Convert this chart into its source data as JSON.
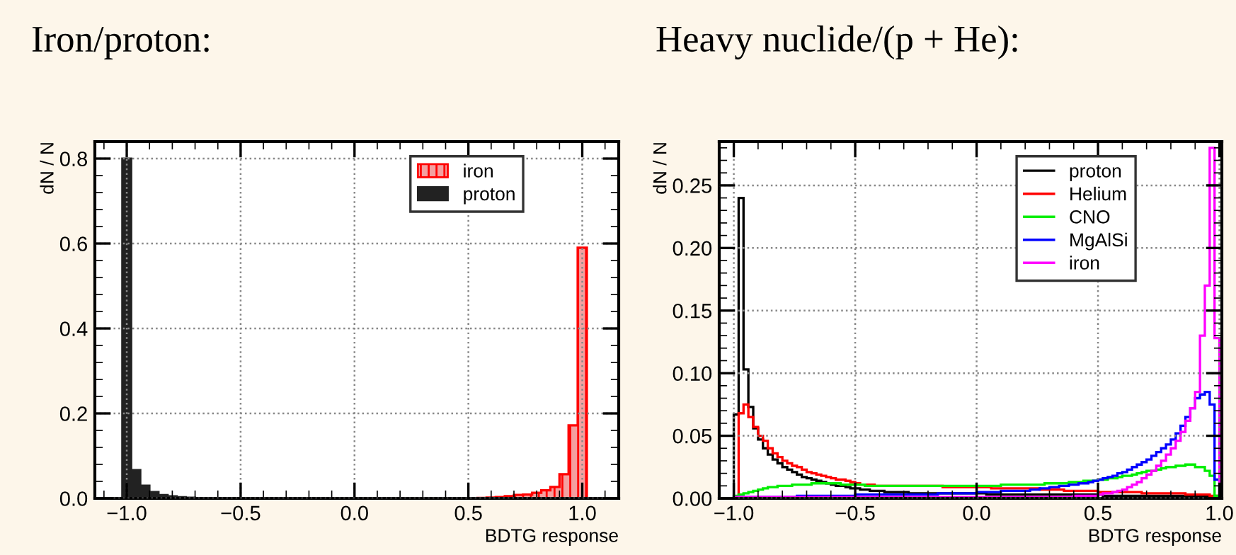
{
  "chart_data": [
    {
      "type": "histogram",
      "title": "Iron/proton:",
      "xlabel": "BDTG response",
      "ylabel": "dN / N",
      "bins": [
        -1.02,
        -0.98,
        -0.94,
        -0.9,
        -0.86,
        -0.82,
        -0.78,
        -0.74,
        -0.7,
        -0.66,
        -0.62,
        -0.58,
        -0.54,
        -0.5,
        -0.46,
        -0.42,
        -0.38,
        -0.34,
        -0.3,
        -0.26,
        -0.22,
        -0.18,
        -0.14,
        -0.1,
        -0.06,
        -0.02,
        0.02,
        0.06,
        0.1,
        0.14,
        0.18,
        0.22,
        0.26,
        0.3,
        0.34,
        0.38,
        0.42,
        0.46,
        0.5,
        0.54,
        0.58,
        0.62,
        0.66,
        0.7,
        0.74,
        0.78,
        0.82,
        0.86,
        0.9,
        0.94,
        0.98,
        1.02
      ],
      "series": [
        {
          "name": "iron",
          "color": "#ff0000",
          "values": [
            0,
            0,
            0,
            0,
            0,
            0,
            0,
            0,
            0,
            0,
            0,
            0,
            0,
            0,
            0,
            0,
            0,
            0,
            0,
            0,
            0,
            0,
            0,
            0,
            0,
            0,
            0,
            0,
            0,
            0,
            0,
            0,
            0,
            0,
            0,
            0,
            0,
            0,
            0,
            0.001,
            0.002,
            0.003,
            0.005,
            0.008,
            0.009,
            0.013,
            0.019,
            0.027,
            0.057,
            0.172,
            0.59
          ]
        },
        {
          "name": "proton",
          "color": "#222222",
          "values": [
            0.8,
            0.067,
            0.03,
            0.015,
            0.008,
            0.005,
            0.003,
            0.002,
            0.001,
            0,
            0,
            0,
            0,
            0,
            0,
            0,
            0,
            0,
            0,
            0,
            0,
            0,
            0,
            0,
            0,
            0,
            0,
            0,
            0,
            0,
            0,
            0,
            0,
            0,
            0,
            0,
            0,
            0,
            0,
            0,
            0,
            0,
            0,
            0,
            0,
            0,
            0,
            0,
            0,
            0,
            0
          ]
        }
      ],
      "xlim": [
        -1.14,
        1.16
      ],
      "ylim": [
        0,
        0.84
      ],
      "xticks": [
        {
          "value": -1,
          "label": "−1.0"
        },
        {
          "value": -0.5,
          "label": "−0.5"
        },
        {
          "value": 0,
          "label": "0.0"
        },
        0.5,
        {
          "value": 1,
          "label": "1.0"
        }
      ],
      "yticks": [
        {
          "value": 0,
          "label": "0.0"
        },
        0.2,
        0.4,
        0.6,
        0.8
      ],
      "grid": true,
      "legend": "top"
    },
    {
      "type": "histogram",
      "title": "Heavy nuclide/(p + He):",
      "xlabel": "BDTG response",
      "ylabel": "dN / N",
      "bins": [
        -1.0,
        -0.98,
        -0.96,
        -0.94,
        -0.92,
        -0.9,
        -0.88,
        -0.86,
        -0.84,
        -0.82,
        -0.8,
        -0.78,
        -0.76,
        -0.74,
        -0.72,
        -0.7,
        -0.68,
        -0.66,
        -0.64,
        -0.62,
        -0.6,
        -0.58,
        -0.56,
        -0.54,
        -0.52,
        -0.5,
        -0.48,
        -0.46,
        -0.44,
        -0.42,
        -0.4,
        -0.38,
        -0.36,
        -0.34,
        -0.32,
        -0.3,
        -0.28,
        -0.26,
        -0.24,
        -0.22,
        -0.2,
        -0.18,
        -0.16,
        -0.14,
        -0.12,
        -0.1,
        -0.08,
        -0.06,
        -0.04,
        -0.02,
        0.0,
        0.02,
        0.04,
        0.06,
        0.08,
        0.1,
        0.12,
        0.14,
        0.16,
        0.18,
        0.2,
        0.22,
        0.24,
        0.26,
        0.28,
        0.3,
        0.32,
        0.34,
        0.36,
        0.38,
        0.4,
        0.42,
        0.44,
        0.46,
        0.48,
        0.5,
        0.52,
        0.54,
        0.56,
        0.58,
        0.6,
        0.62,
        0.64,
        0.66,
        0.68,
        0.7,
        0.72,
        0.74,
        0.76,
        0.78,
        0.8,
        0.82,
        0.84,
        0.86,
        0.88,
        0.9,
        0.92,
        0.94,
        0.96,
        0.98,
        1.0
      ],
      "series": [
        {
          "name": "proton",
          "color": "#000000",
          "values": [
            0.067,
            0.24,
            0.103,
            0.073,
            0.056,
            0.047,
            0.04,
            0.035,
            0.031,
            0.028,
            0.025,
            0.023,
            0.021,
            0.019,
            0.017,
            0.016,
            0.015,
            0.014,
            0.013,
            0.012,
            0.011,
            0.01,
            0.01,
            0.009,
            0.008,
            0.008,
            0.007,
            0.007,
            0.006,
            0.006,
            0.006,
            0.005,
            0.005,
            0.005,
            0.005,
            0.005,
            0.004,
            0.004,
            0.004,
            0.004,
            0.004,
            0.004,
            0.004,
            0.004,
            0.004,
            0.004,
            0.004,
            0.004,
            0.004,
            0.004,
            0.004,
            0.004,
            0.003,
            0.003,
            0.003,
            0.003,
            0.003,
            0.003,
            0.003,
            0.003,
            0.003,
            0.003,
            0.003,
            0.003,
            0.003,
            0.003,
            0.003,
            0.003,
            0.003,
            0.003,
            0.003,
            0.003,
            0.003,
            0.003,
            0.003,
            0.003,
            0.002,
            0.002,
            0.002,
            0.002,
            0.002,
            0.002,
            0.002,
            0.002,
            0.002,
            0.002,
            0.002,
            0.002,
            0.002,
            0.002,
            0.002,
            0.002,
            0.002,
            0.002,
            0.002,
            0.002,
            0.002,
            0.002,
            0.001,
            0.001
          ]
        },
        {
          "name": "Helium",
          "color": "#ff0000",
          "values": [
            0.0,
            0.068,
            0.075,
            0.065,
            0.057,
            0.05,
            0.046,
            0.04,
            0.036,
            0.033,
            0.03,
            0.028,
            0.026,
            0.025,
            0.023,
            0.021,
            0.02,
            0.019,
            0.018,
            0.017,
            0.016,
            0.015,
            0.015,
            0.014,
            0.013,
            0.012,
            0.011,
            0.011,
            0.011,
            0.01,
            0.01,
            0.01,
            0.01,
            0.01,
            0.01,
            0.01,
            0.01,
            0.01,
            0.01,
            0.01,
            0.01,
            0.01,
            0.01,
            0.009,
            0.009,
            0.009,
            0.009,
            0.009,
            0.009,
            0.009,
            0.009,
            0.009,
            0.009,
            0.008,
            0.008,
            0.008,
            0.008,
            0.008,
            0.008,
            0.008,
            0.008,
            0.008,
            0.008,
            0.007,
            0.007,
            0.007,
            0.007,
            0.007,
            0.006,
            0.006,
            0.006,
            0.006,
            0.006,
            0.006,
            0.006,
            0.005,
            0.005,
            0.005,
            0.005,
            0.005,
            0.005,
            0.005,
            0.005,
            0.005,
            0.004,
            0.004,
            0.004,
            0.004,
            0.004,
            0.004,
            0.004,
            0.004,
            0.004,
            0.003,
            0.003,
            0.003,
            0.003,
            0.003,
            0.002,
            0.002
          ]
        },
        {
          "name": "CNO",
          "color": "#00ee00",
          "values": [
            0.002,
            0.003,
            0.004,
            0.005,
            0.006,
            0.007,
            0.008,
            0.009,
            0.009,
            0.01,
            0.01,
            0.01,
            0.011,
            0.011,
            0.011,
            0.011,
            0.012,
            0.012,
            0.012,
            0.012,
            0.012,
            0.012,
            0.011,
            0.011,
            0.011,
            0.011,
            0.011,
            0.01,
            0.01,
            0.01,
            0.01,
            0.01,
            0.01,
            0.01,
            0.01,
            0.01,
            0.01,
            0.01,
            0.01,
            0.01,
            0.01,
            0.01,
            0.01,
            0.01,
            0.01,
            0.01,
            0.01,
            0.01,
            0.01,
            0.01,
            0.01,
            0.01,
            0.01,
            0.01,
            0.01,
            0.011,
            0.011,
            0.011,
            0.011,
            0.011,
            0.011,
            0.011,
            0.011,
            0.011,
            0.012,
            0.012,
            0.012,
            0.012,
            0.012,
            0.013,
            0.013,
            0.013,
            0.014,
            0.014,
            0.014,
            0.015,
            0.015,
            0.016,
            0.016,
            0.017,
            0.018,
            0.018,
            0.019,
            0.02,
            0.021,
            0.022,
            0.022,
            0.023,
            0.024,
            0.025,
            0.025,
            0.026,
            0.026,
            0.027,
            0.027,
            0.025,
            0.025,
            0.022,
            0.018,
            0.002
          ]
        },
        {
          "name": "MgAlSi",
          "color": "#0000ff",
          "values": [
            0.001,
            0.001,
            0.001,
            0.001,
            0.001,
            0.001,
            0.001,
            0.001,
            0.001,
            0.001,
            0.001,
            0.001,
            0.001,
            0.002,
            0.002,
            0.002,
            0.002,
            0.002,
            0.002,
            0.002,
            0.002,
            0.002,
            0.002,
            0.002,
            0.002,
            0.003,
            0.003,
            0.003,
            0.003,
            0.003,
            0.003,
            0.003,
            0.003,
            0.003,
            0.003,
            0.003,
            0.003,
            0.003,
            0.003,
            0.003,
            0.003,
            0.003,
            0.004,
            0.004,
            0.004,
            0.004,
            0.004,
            0.004,
            0.004,
            0.004,
            0.005,
            0.005,
            0.005,
            0.005,
            0.005,
            0.006,
            0.006,
            0.006,
            0.006,
            0.006,
            0.006,
            0.007,
            0.007,
            0.008,
            0.008,
            0.009,
            0.009,
            0.01,
            0.01,
            0.011,
            0.011,
            0.012,
            0.012,
            0.013,
            0.014,
            0.015,
            0.016,
            0.017,
            0.018,
            0.02,
            0.021,
            0.023,
            0.025,
            0.027,
            0.029,
            0.031,
            0.034,
            0.037,
            0.04,
            0.043,
            0.047,
            0.052,
            0.058,
            0.065,
            0.072,
            0.08,
            0.083,
            0.085,
            0.075,
            0.015
          ]
        },
        {
          "name": "iron",
          "color": "#ff00ff",
          "values": [
            0.001,
            0.001,
            0.001,
            0.001,
            0.001,
            0.001,
            0.001,
            0.001,
            0.001,
            0.001,
            0.001,
            0.001,
            0.001,
            0.001,
            0.001,
            0.001,
            0.001,
            0.001,
            0.001,
            0.001,
            0.001,
            0.001,
            0.001,
            0.001,
            0.001,
            0.001,
            0.001,
            0.001,
            0.001,
            0.001,
            0.001,
            0.001,
            0.001,
            0.001,
            0.001,
            0.001,
            0.001,
            0.001,
            0.001,
            0.001,
            0.001,
            0.001,
            0.001,
            0.001,
            0.001,
            0.001,
            0.001,
            0.001,
            0.001,
            0.001,
            0.001,
            0.001,
            0.001,
            0.001,
            0.001,
            0.001,
            0.001,
            0.001,
            0.001,
            0.001,
            0.001,
            0.001,
            0.001,
            0.001,
            0.001,
            0.001,
            0.001,
            0.001,
            0.001,
            0.001,
            0.002,
            0.002,
            0.002,
            0.002,
            0.002,
            0.003,
            0.004,
            0.004,
            0.005,
            0.006,
            0.007,
            0.009,
            0.011,
            0.013,
            0.016,
            0.019,
            0.022,
            0.026,
            0.03,
            0.035,
            0.04,
            0.046,
            0.053,
            0.062,
            0.072,
            0.085,
            0.13,
            0.17,
            0.28,
            0.128
          ]
        }
      ],
      "xlim": [
        -1.06,
        1.01
      ],
      "ylim": [
        0,
        0.285
      ],
      "xticks": [
        {
          "value": -1,
          "label": "−1.0"
        },
        {
          "value": -0.5,
          "label": "−0.5"
        },
        {
          "value": 0,
          "label": "0.0"
        },
        0.5,
        {
          "value": 1,
          "label": "1.0"
        }
      ],
      "yticks": [
        {
          "value": 0,
          "label": "0.00"
        },
        0.05,
        {
          "value": 0.1,
          "label": "0.10"
        },
        0.15,
        {
          "value": 0.2,
          "label": "0.20"
        },
        0.25
      ],
      "grid": true,
      "legend": "top"
    }
  ]
}
